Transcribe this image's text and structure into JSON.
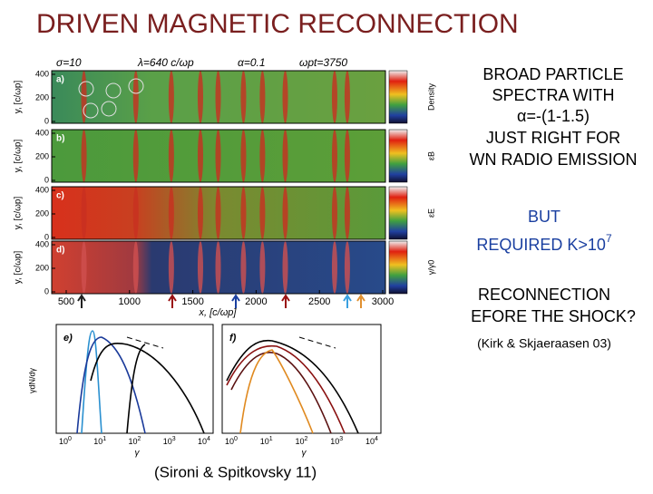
{
  "title": "DRIVEN MAGNETIC RECONNECTION",
  "right_text": {
    "lines": [
      "BROAD PARTICLE",
      "SPECTRA WITH",
      "α=-(1-1.5)",
      "JUST RIGHT FOR",
      "WN RADIO EMISSION"
    ],
    "but": "BUT",
    "required": {
      "text": "REQUIRED K>10",
      "sup": "7"
    },
    "question": [
      "RECONNECTION",
      "EFORE THE SHOCK?"
    ],
    "reference": "(Kirk & Skjaeraasen 03)"
  },
  "figure": {
    "header": [
      "σ=10",
      "λ=640  c/ωp",
      "α=0.1",
      "ωpt=3750"
    ],
    "panels": [
      {
        "label": "a)",
        "colorbar": "Density"
      },
      {
        "label": "b)",
        "colorbar": "εB"
      },
      {
        "label": "c)",
        "colorbar": "εE"
      },
      {
        "label": "d)",
        "colorbar": "γ/γ0"
      }
    ],
    "yticks": [
      0,
      200,
      400
    ],
    "ylabel": "y, [c/ωp]",
    "xticks": [
      500,
      1000,
      1500,
      2000,
      2500,
      3000
    ],
    "xlabel": "x, [c/ωp]"
  },
  "spectra": {
    "panels": [
      "e)",
      "f)"
    ],
    "xlabel": "γ",
    "ylabel": "γdN/dγ",
    "xticks": [
      {
        "base": "10",
        "exp": "0"
      },
      {
        "base": "10",
        "exp": "1"
      },
      {
        "base": "10",
        "exp": "2"
      },
      {
        "base": "10",
        "exp": "3"
      },
      {
        "base": "10",
        "exp": "4"
      }
    ]
  },
  "caption": "(Sironi & Spitkovsky 11)"
}
